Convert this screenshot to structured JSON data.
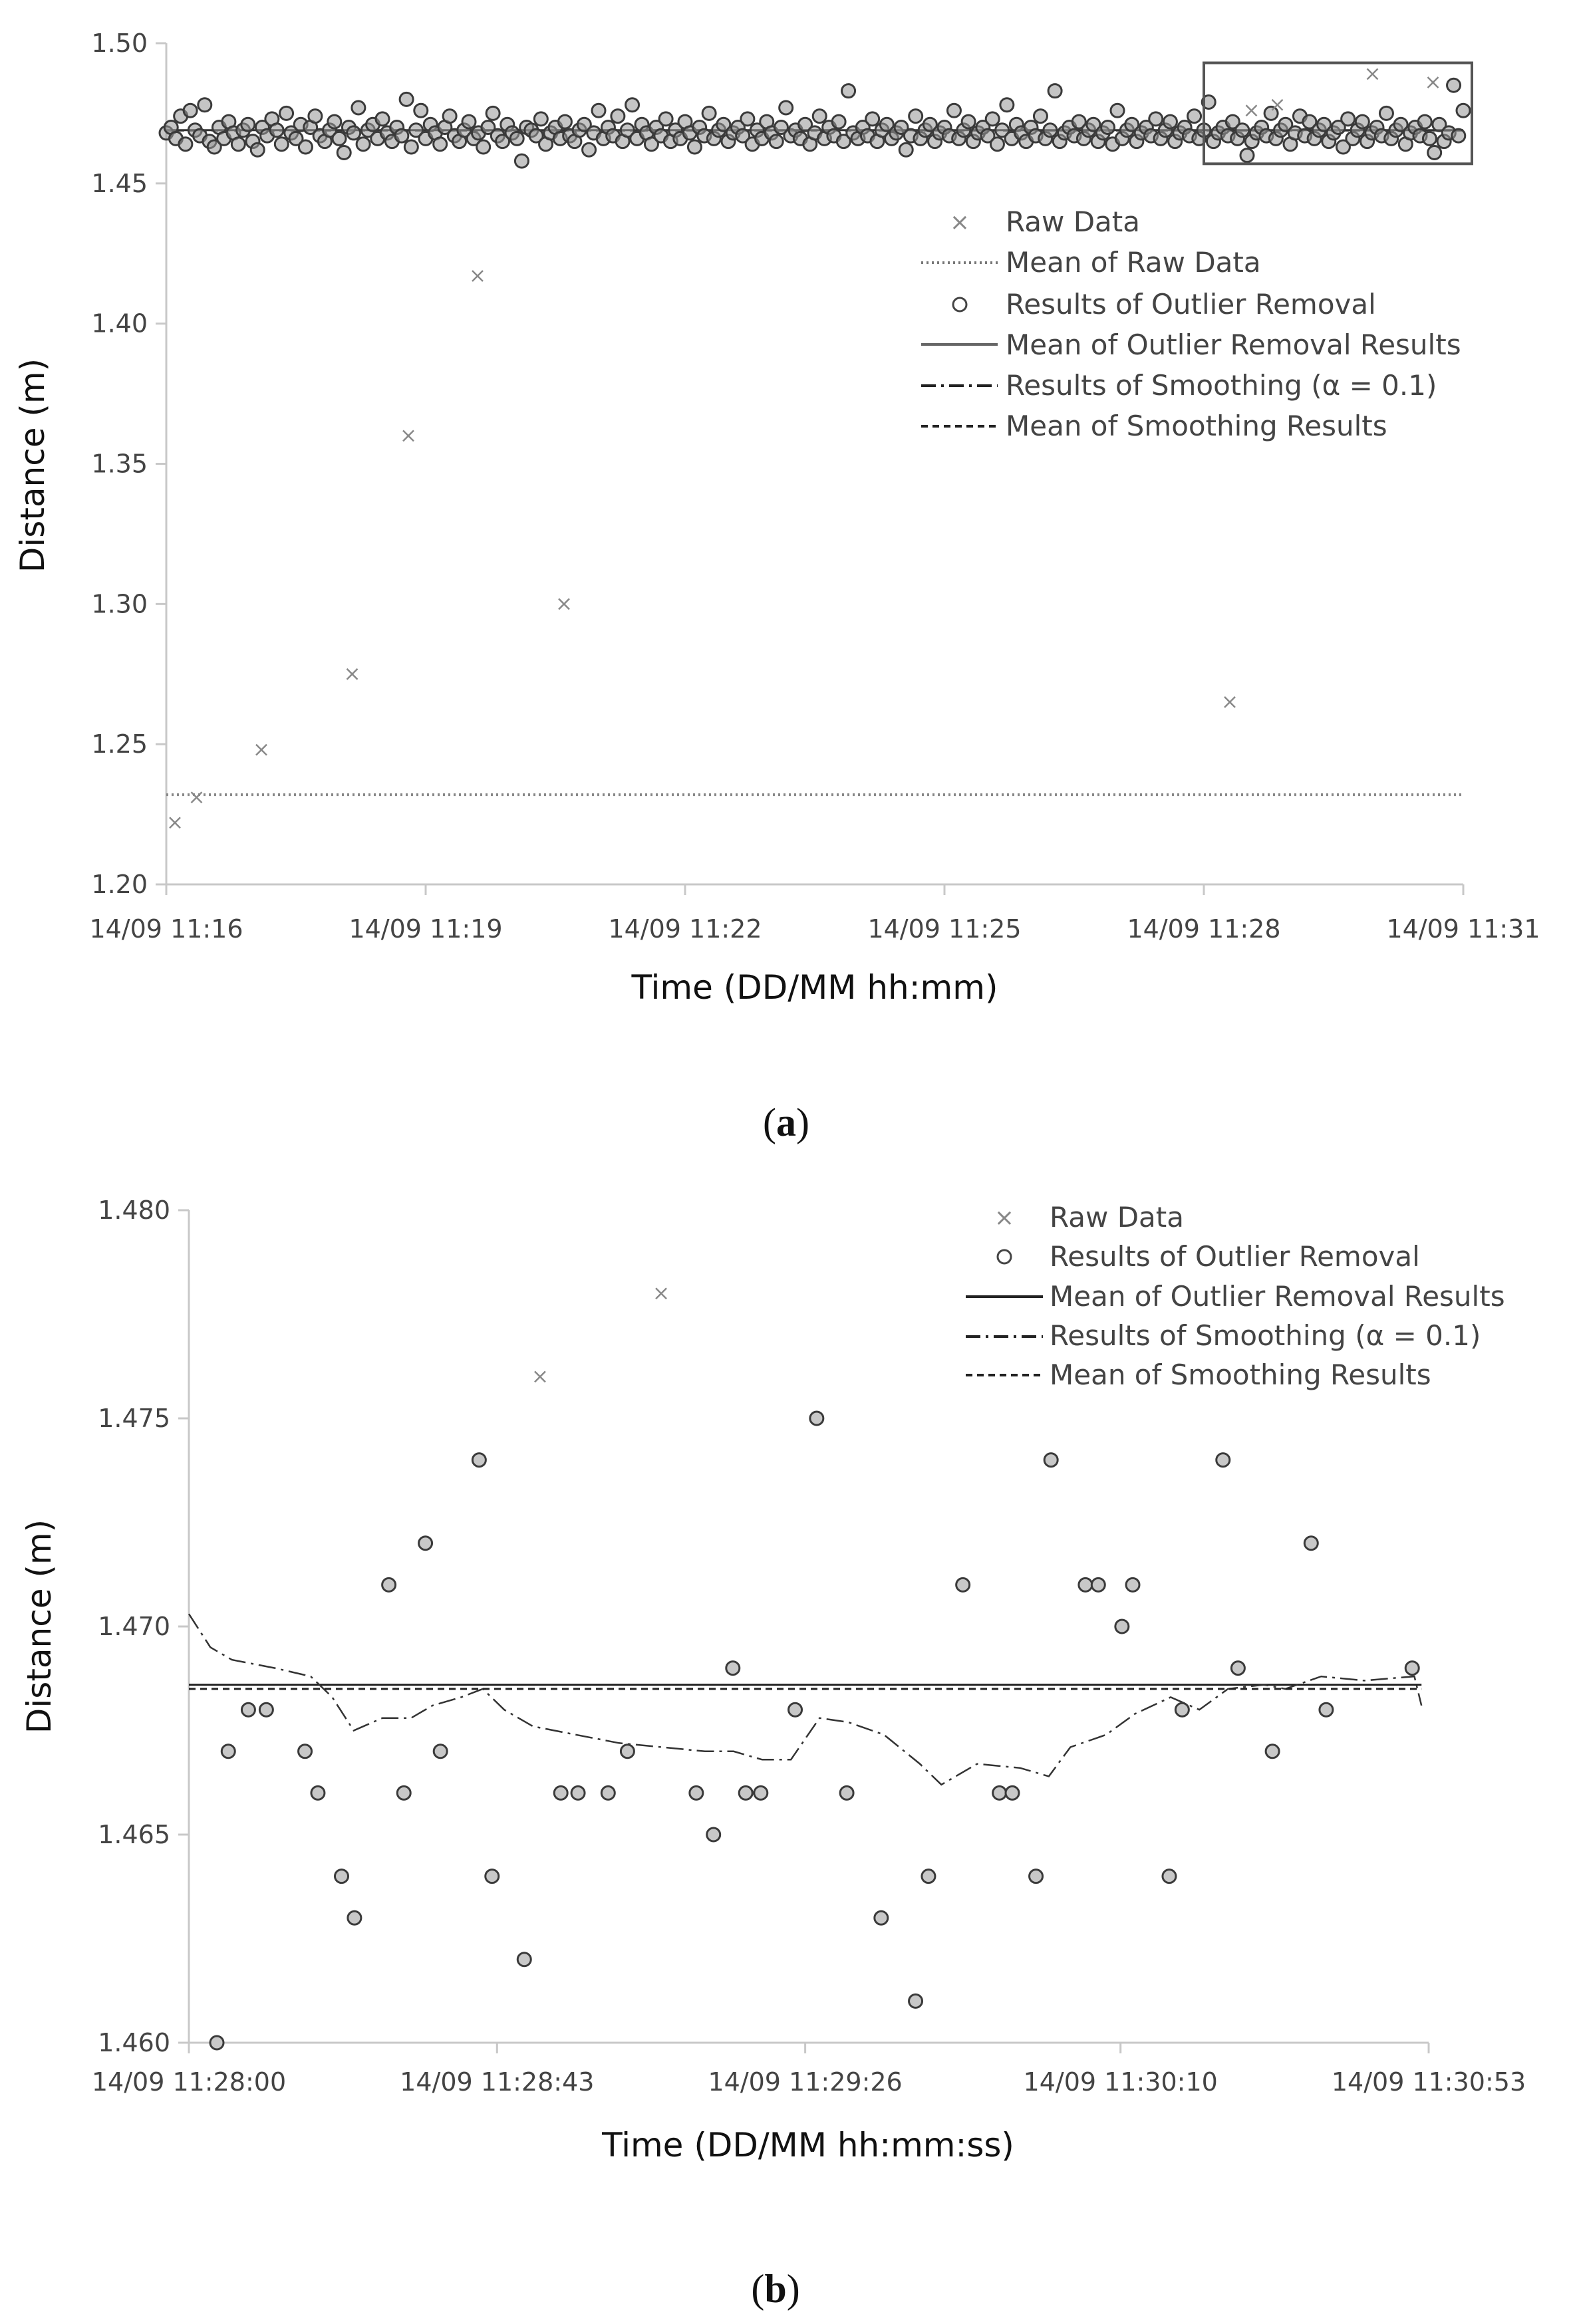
{
  "chart_data": [
    {
      "panel_label": "a",
      "type": "scatter",
      "xlabel": "Time (DD/MM hh:mm)",
      "ylabel": "Distance (m)",
      "x_unit": "minutes since 14/09 11:16",
      "xlim": [
        0,
        15
      ],
      "ylim": [
        1.2,
        1.5
      ],
      "x_ticks": [
        0,
        3,
        6,
        9,
        12,
        15
      ],
      "x_tick_labels": [
        "14/09 11:16",
        "14/09 11:19",
        "14/09 11:22",
        "14/09 11:25",
        "14/09 11:28",
        "14/09 11:31"
      ],
      "y_ticks": [
        1.2,
        1.25,
        1.3,
        1.35,
        1.4,
        1.45,
        1.5
      ],
      "y_tick_labels": [
        "1.20",
        "1.25",
        "1.30",
        "1.35",
        "1.40",
        "1.45",
        "1.50"
      ],
      "legend": {
        "position": "right",
        "entries": [
          {
            "label": "Raw Data",
            "style": "x-marker"
          },
          {
            "label": "Mean of Raw Data",
            "style": "dotted"
          },
          {
            "label": "Results of Outlier Removal",
            "style": "circle-marker"
          },
          {
            "label": "Mean of Outlier Removal Results",
            "style": "solid"
          },
          {
            "label": "Results of Smoothing  (α = 0.1)",
            "style": "dash-dot"
          },
          {
            "label": "Mean of Smoothing Results",
            "style": "dashed"
          }
        ]
      },
      "highlight_box": {
        "x_range": [
          12.0,
          15.1
        ],
        "y_range": [
          1.457,
          1.493
        ]
      },
      "series": [
        {
          "name": "Raw Data (outliers)",
          "marker": "x",
          "points": [
            [
              0.1,
              1.222
            ],
            [
              0.35,
              1.231
            ],
            [
              1.1,
              1.248
            ],
            [
              2.15,
              1.275
            ],
            [
              2.8,
              1.36
            ],
            [
              3.6,
              1.417
            ],
            [
              4.6,
              1.3
            ],
            [
              12.3,
              1.265
            ],
            [
              12.55,
              1.476
            ],
            [
              12.85,
              1.478
            ],
            [
              13.95,
              1.489
            ],
            [
              14.65,
              1.486
            ]
          ]
        },
        {
          "name": "Mean of Raw Data",
          "style": "dotted",
          "value": 1.232
        },
        {
          "name": "Results of Outlier Removal",
          "marker": "o",
          "x_start": 0.0,
          "x_end": 15.0,
          "values": [
            1.468,
            1.47,
            1.466,
            1.474,
            1.464,
            1.476,
            1.469,
            1.467,
            1.478,
            1.465,
            1.463,
            1.47,
            1.466,
            1.472,
            1.468,
            1.464,
            1.469,
            1.471,
            1.465,
            1.462,
            1.47,
            1.467,
            1.473,
            1.469,
            1.464,
            1.475,
            1.468,
            1.466,
            1.471,
            1.463,
            1.47,
            1.474,
            1.467,
            1.465,
            1.469,
            1.472,
            1.466,
            1.461,
            1.47,
            1.468,
            1.477,
            1.464,
            1.469,
            1.471,
            1.466,
            1.473,
            1.468,
            1.465,
            1.47,
            1.467,
            1.48,
            1.463,
            1.469,
            1.476,
            1.466,
            1.471,
            1.468,
            1.464,
            1.47,
            1.474,
            1.467,
            1.465,
            1.469,
            1.472,
            1.466,
            1.468,
            1.463,
            1.47,
            1.475,
            1.467,
            1.465,
            1.471,
            1.468,
            1.466,
            1.458,
            1.47,
            1.469,
            1.467,
            1.473,
            1.464,
            1.468,
            1.47,
            1.466,
            1.472,
            1.467,
            1.465,
            1.469,
            1.471,
            1.462,
            1.468,
            1.476,
            1.466,
            1.47,
            1.467,
            1.474,
            1.465,
            1.469,
            1.478,
            1.466,
            1.471,
            1.468,
            1.464,
            1.47,
            1.467,
            1.473,
            1.465,
            1.469,
            1.466,
            1.472,
            1.468,
            1.463,
            1.47,
            1.467,
            1.475,
            1.466,
            1.469,
            1.471,
            1.465,
            1.468,
            1.47,
            1.467,
            1.473,
            1.464,
            1.469,
            1.466,
            1.472,
            1.468,
            1.465,
            1.47,
            1.477,
            1.467,
            1.469,
            1.466,
            1.471,
            1.464,
            1.468,
            1.474,
            1.466,
            1.47,
            1.467,
            1.472,
            1.465,
            1.483,
            1.468,
            1.466,
            1.47,
            1.467,
            1.473,
            1.465,
            1.469,
            1.471,
            1.466,
            1.468,
            1.47,
            1.462,
            1.467,
            1.474,
            1.466,
            1.469,
            1.471,
            1.465,
            1.468,
            1.47,
            1.467,
            1.476,
            1.466,
            1.469,
            1.472,
            1.465,
            1.468,
            1.47,
            1.467,
            1.473,
            1.464,
            1.469,
            1.478,
            1.466,
            1.471,
            1.468,
            1.465,
            1.47,
            1.467,
            1.474,
            1.466,
            1.469,
            1.483,
            1.465,
            1.468,
            1.47,
            1.467,
            1.472,
            1.466,
            1.469,
            1.471,
            1.465,
            1.468,
            1.47,
            1.464,
            1.476,
            1.466,
            1.469,
            1.471,
            1.465,
            1.468,
            1.47,
            1.467,
            1.473,
            1.466,
            1.469,
            1.472,
            1.465,
            1.468,
            1.47,
            1.467,
            1.474,
            1.466,
            1.469,
            1.479,
            1.465,
            1.468,
            1.47,
            1.467,
            1.472,
            1.466,
            1.469,
            1.46,
            1.465,
            1.468,
            1.47,
            1.467,
            1.475,
            1.466,
            1.469,
            1.471,
            1.464,
            1.468,
            1.474,
            1.467,
            1.472,
            1.466,
            1.469,
            1.471,
            1.465,
            1.468,
            1.47,
            1.463,
            1.473,
            1.466,
            1.469,
            1.472,
            1.465,
            1.468,
            1.47,
            1.467,
            1.475,
            1.466,
            1.469,
            1.471,
            1.464,
            1.468,
            1.47,
            1.467,
            1.472,
            1.466,
            1.461,
            1.471,
            1.465,
            1.468,
            1.485,
            1.467,
            1.476
          ]
        },
        {
          "name": "Mean of Outlier Removal Results",
          "style": "solid",
          "value": 1.469
        },
        {
          "name": "Mean of Smoothing Results",
          "style": "dashed",
          "value": 1.4688
        }
      ]
    },
    {
      "panel_label": "b",
      "type": "scatter",
      "xlabel": "Time (DD/MM hh:mm:ss)",
      "ylabel": "Distance (m)",
      "x_unit": "seconds since 14/09 11:28:00",
      "xlim": [
        0,
        172
      ],
      "ylim": [
        1.46,
        1.48
      ],
      "x_ticks": [
        0,
        43,
        86,
        130,
        173
      ],
      "x_tick_labels": [
        "14/09 11:28:00",
        "14/09 11:28:43",
        "14/09 11:29:26",
        "14/09 11:30:10",
        "14/09 11:30:53"
      ],
      "y_ticks": [
        1.46,
        1.465,
        1.47,
        1.475,
        1.48
      ],
      "y_tick_labels": [
        "1.460",
        "1.465",
        "1.470",
        "1.475",
        "1.480"
      ],
      "legend": {
        "position": "top-right",
        "entries": [
          {
            "label": "Raw Data",
            "style": "x-marker"
          },
          {
            "label": "Results of Outlier Removal",
            "style": "circle-marker"
          },
          {
            "label": "Mean of Outlier Removal Results",
            "style": "solid"
          },
          {
            "label": "Results of Smoothing  (α = 0.1)",
            "style": "dash-dot"
          },
          {
            "label": "Mean of Smoothing Results",
            "style": "dashed"
          }
        ]
      },
      "series": [
        {
          "name": "Raw Data (outliers)",
          "marker": "x",
          "points": [
            [
              49.0,
              1.476
            ],
            [
              65.9,
              1.478
            ]
          ]
        },
        {
          "name": "Results of Outlier Removal",
          "marker": "o",
          "points": [
            [
              3.9,
              1.46
            ],
            [
              5.5,
              1.467
            ],
            [
              8.3,
              1.468
            ],
            [
              10.8,
              1.468
            ],
            [
              16.2,
              1.467
            ],
            [
              18.0,
              1.466
            ],
            [
              21.3,
              1.464
            ],
            [
              23.1,
              1.463
            ],
            [
              27.9,
              1.471
            ],
            [
              30.0,
              1.466
            ],
            [
              33.0,
              1.472
            ],
            [
              35.1,
              1.467
            ],
            [
              40.5,
              1.474
            ],
            [
              42.3,
              1.464
            ],
            [
              46.8,
              1.462
            ],
            [
              51.9,
              1.466
            ],
            [
              54.3,
              1.466
            ],
            [
              58.5,
              1.466
            ],
            [
              61.2,
              1.467
            ],
            [
              70.8,
              1.466
            ],
            [
              73.2,
              1.465
            ],
            [
              75.9,
              1.469
            ],
            [
              77.7,
              1.466
            ],
            [
              79.8,
              1.466
            ],
            [
              84.6,
              1.468
            ],
            [
              87.6,
              1.475
            ],
            [
              91.8,
              1.466
            ],
            [
              96.6,
              1.463
            ],
            [
              101.4,
              1.461
            ],
            [
              103.2,
              1.464
            ],
            [
              108.0,
              1.471
            ],
            [
              113.1,
              1.466
            ],
            [
              114.9,
              1.466
            ],
            [
              118.2,
              1.464
            ],
            [
              120.3,
              1.474
            ],
            [
              125.1,
              1.471
            ],
            [
              126.9,
              1.471
            ],
            [
              130.2,
              1.47
            ],
            [
              131.7,
              1.471
            ],
            [
              136.8,
              1.464
            ],
            [
              138.6,
              1.468
            ],
            [
              144.3,
              1.474
            ],
            [
              146.4,
              1.469
            ],
            [
              151.2,
              1.467
            ],
            [
              156.6,
              1.472
            ],
            [
              158.7,
              1.468
            ],
            [
              170.7,
              1.469
            ]
          ]
        },
        {
          "name": "Mean of Outlier Removal Results",
          "style": "solid",
          "value": 1.4686
        },
        {
          "name": "Results of Smoothing (α = 0.1)",
          "style": "dash-dot",
          "points": [
            [
              0,
              1.4703
            ],
            [
              3,
              1.4695
            ],
            [
              6,
              1.4692
            ],
            [
              12,
              1.469
            ],
            [
              17,
              1.4688
            ],
            [
              20,
              1.4683
            ],
            [
              23,
              1.4675
            ],
            [
              27,
              1.4678
            ],
            [
              31,
              1.4678
            ],
            [
              34,
              1.4681
            ],
            [
              38,
              1.4683
            ],
            [
              41,
              1.4685
            ],
            [
              44,
              1.468
            ],
            [
              48,
              1.4676
            ],
            [
              54,
              1.4674
            ],
            [
              60,
              1.4672
            ],
            [
              66,
              1.4671
            ],
            [
              72,
              1.467
            ],
            [
              76,
              1.467
            ],
            [
              80,
              1.4668
            ],
            [
              84,
              1.4668
            ],
            [
              88,
              1.4678
            ],
            [
              92,
              1.4677
            ],
            [
              97,
              1.4674
            ],
            [
              102,
              1.4667
            ],
            [
              105,
              1.4662
            ],
            [
              110,
              1.4667
            ],
            [
              116,
              1.4666
            ],
            [
              120,
              1.4664
            ],
            [
              123,
              1.4671
            ],
            [
              128,
              1.4674
            ],
            [
              132,
              1.4679
            ],
            [
              137,
              1.4683
            ],
            [
              141,
              1.468
            ],
            [
              145,
              1.4685
            ],
            [
              150,
              1.4686
            ],
            [
              153,
              1.4685
            ],
            [
              158,
              1.4688
            ],
            [
              164,
              1.4687
            ],
            [
              171,
              1.4688
            ],
            [
              172,
              1.4681
            ]
          ]
        },
        {
          "name": "Mean of Smoothing Results",
          "style": "dashed",
          "value": 1.4685
        }
      ]
    }
  ]
}
